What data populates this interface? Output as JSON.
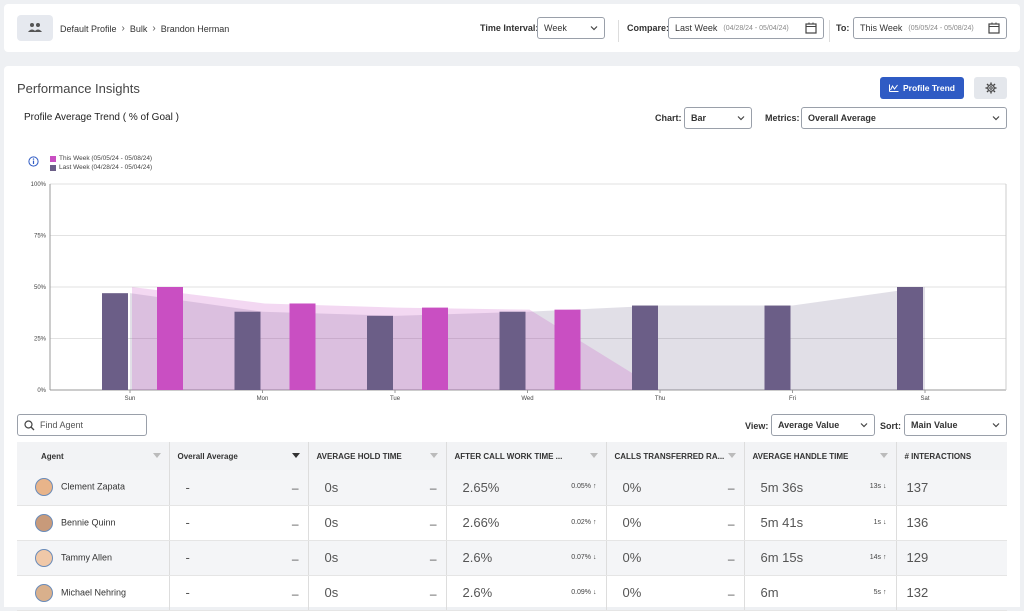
{
  "breadcrumb": [
    "Default Profile",
    "Bulk",
    "Brandon Herman"
  ],
  "filters": {
    "time_interval_label": "Time Interval:",
    "time_interval_value": "Week",
    "compare_label": "Compare:",
    "compare_value": "Last Week",
    "compare_dates": "(04/28/24 - 05/04/24)",
    "to_label": "To:",
    "to_value": "This Week",
    "to_dates": "(05/05/24 - 05/08/24)"
  },
  "panel": {
    "title": "Performance Insights",
    "profile_trend_label": "Profile Trend",
    "subtitle": "Profile Average Trend ( % of Goal )",
    "chart_label": "Chart:",
    "chart_value": "Bar",
    "metrics_label": "Metrics:",
    "metrics_value": "Overall Average"
  },
  "legend": {
    "this_week": "This Week (05/05/24 - 05/08/24)",
    "last_week": "Last Week (04/28/24 - 05/04/24)"
  },
  "colors": {
    "this_week": "#c94fc2",
    "last_week": "#6b5e87",
    "accent": "#2f5bc4"
  },
  "chart_data": {
    "type": "bar",
    "categories": [
      "Sun",
      "Mon",
      "Tue",
      "Wed",
      "Thu",
      "Fri",
      "Sat"
    ],
    "series": [
      {
        "name": "Last Week (04/28/24 - 05/04/24)",
        "values": [
          47,
          38,
          36,
          38,
          41,
          41,
          50
        ]
      },
      {
        "name": "This Week (05/05/24 - 05/08/24)",
        "values": [
          50,
          42,
          40,
          39,
          null,
          null,
          null
        ]
      }
    ],
    "yticks": [
      "0%",
      "25%",
      "50%",
      "75%",
      "100%"
    ],
    "ylim": [
      0,
      100
    ],
    "grid": true,
    "legend_position": "top-left"
  },
  "table_controls": {
    "find_placeholder": "Find Agent",
    "view_label": "View:",
    "view_value": "Average Value",
    "sort_label": "Sort:",
    "sort_value": "Main Value"
  },
  "table": {
    "headers": [
      "Agent",
      "Overall Average",
      "AVERAGE HOLD TIME",
      "AFTER CALL WORK TIME ...",
      "CALLS TRANSFERRED RA...",
      "AVERAGE HANDLE TIME",
      "# INTERACTIONS"
    ],
    "rows": [
      {
        "agent": "Clement Zapata",
        "overall": "-",
        "hold": "0s",
        "acw": "2.65%",
        "acw_delta": "0.05%",
        "acw_dir": "up",
        "transfer": "0%",
        "aht": "5m 36s",
        "aht_delta": "13s",
        "aht_dir": "down",
        "interactions": "137"
      },
      {
        "agent": "Bennie Quinn",
        "overall": "-",
        "hold": "0s",
        "acw": "2.66%",
        "acw_delta": "0.02%",
        "acw_dir": "up",
        "transfer": "0%",
        "aht": "5m 41s",
        "aht_delta": "1s",
        "aht_dir": "down",
        "interactions": "136"
      },
      {
        "agent": "Tammy Allen",
        "overall": "-",
        "hold": "0s",
        "acw": "2.6%",
        "acw_delta": "0.07%",
        "acw_dir": "down",
        "transfer": "0%",
        "aht": "6m 15s",
        "aht_delta": "14s",
        "aht_dir": "up",
        "interactions": "129"
      },
      {
        "agent": "Michael Nehring",
        "overall": "-",
        "hold": "0s",
        "acw": "2.6%",
        "acw_delta": "0.09%",
        "acw_dir": "down",
        "transfer": "0%",
        "aht": "6m",
        "aht_delta": "5s",
        "aht_dir": "up",
        "interactions": "132"
      }
    ]
  }
}
